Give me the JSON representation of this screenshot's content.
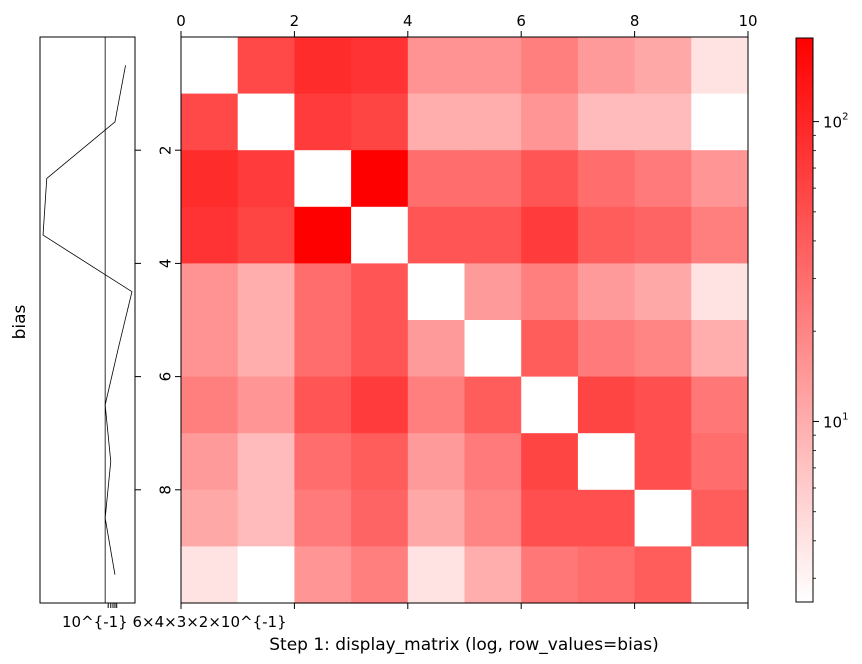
{
  "chart_data": {
    "type": "heatmap",
    "title": "Step 1: display_matrix (log, row_values=bias)",
    "colormap": {
      "low": "#ffffff",
      "high": "#ff0000"
    },
    "matrix": [
      [
        2.5,
        55,
        90,
        80,
        16,
        16,
        22,
        14,
        11,
        4
      ],
      [
        55,
        2.5,
        70,
        60,
        10,
        10,
        15,
        8,
        8,
        2.5
      ],
      [
        90,
        70,
        2.5,
        190,
        30,
        30,
        45,
        30,
        24,
        15
      ],
      [
        80,
        60,
        190,
        2.5,
        45,
        45,
        70,
        40,
        35,
        22
      ],
      [
        16,
        10,
        30,
        45,
        2.5,
        14,
        22,
        14,
        11,
        4
      ],
      [
        16,
        10,
        30,
        45,
        14,
        2.5,
        40,
        24,
        20,
        10
      ],
      [
        22,
        15,
        45,
        70,
        22,
        40,
        2.5,
        60,
        50,
        25
      ],
      [
        14,
        8,
        30,
        40,
        14,
        24,
        60,
        2.5,
        50,
        30
      ],
      [
        11,
        8,
        24,
        35,
        11,
        20,
        50,
        50,
        2.5,
        40
      ],
      [
        4,
        2.5,
        15,
        22,
        4,
        10,
        25,
        30,
        40,
        2.5
      ]
    ],
    "color_scale": "log",
    "vmin": 2.5,
    "vmax": 190,
    "colorbar": {
      "ticks": [
        {
          "value": 10,
          "label_base": "10",
          "label_exp": "1"
        },
        {
          "value": 100,
          "label_base": "10",
          "label_exp": "2"
        }
      ],
      "minor_ticks": [
        3,
        4,
        5,
        6,
        7,
        8,
        9,
        20,
        30,
        40,
        50,
        60,
        70,
        80,
        90
      ]
    },
    "xlim": [
      0,
      10
    ],
    "ylim": [
      0,
      10
    ],
    "x_ticks": [
      0,
      2,
      4,
      6,
      8,
      10
    ],
    "y_ticks": [
      2,
      4,
      6,
      8
    ],
    "xlabel": "",
    "ylabel": "",
    "side_plot": {
      "ylabel": "bias",
      "values": [
        0.17,
        0.09,
        0.0015,
        0.0012,
        0.25,
        0.11,
        0.05,
        0.07,
        0.05,
        0.09
      ],
      "vline": 0.05,
      "xlim": [
        0.001,
        0.3
      ],
      "tick_labels": [
        "10",
        "6×",
        "4×",
        "3×",
        "2×",
        "10"
      ],
      "tick_labels_rendered": "10^{-1} 6×4×3×2×10^{-1}"
    }
  }
}
